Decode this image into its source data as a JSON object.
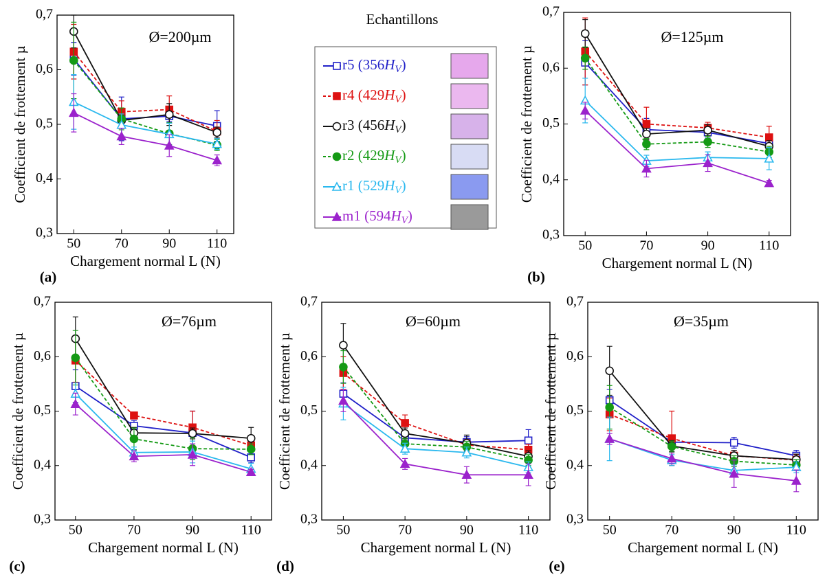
{
  "legend": {
    "title": "Echantillons",
    "items": [
      {
        "prefix": "r5 (356",
        "symbol": "H",
        "subscript": "V",
        "suffix": ")",
        "color": "#2020c8",
        "marker": "square-open",
        "dashed": false
      },
      {
        "prefix": "r4 (429",
        "symbol": "H",
        "subscript": "V",
        "suffix": ")",
        "color": "#dd1111",
        "marker": "square",
        "dashed": true
      },
      {
        "prefix": "r3 (456",
        "symbol": "H",
        "subscript": "V",
        "suffix": ")",
        "color": "#111111",
        "marker": "circle-open",
        "dashed": false
      },
      {
        "prefix": "r2 (429",
        "symbol": "H",
        "subscript": "V",
        "suffix": ")",
        "color": "#159a15",
        "marker": "circle",
        "dashed": true
      },
      {
        "prefix": "r1 (529",
        "symbol": "H",
        "subscript": "V",
        "suffix": ")",
        "color": "#2ab8ee",
        "marker": "triangle-open",
        "dashed": false
      },
      {
        "prefix": "m1 (594",
        "symbol": "H",
        "subscript": "V",
        "suffix": ")",
        "color": "#9b22cc",
        "marker": "triangle",
        "dashed": false
      }
    ]
  },
  "chart_data": [
    {
      "type": "line",
      "title": "Ø=200µm",
      "panel": "(a)",
      "x_label": "Chargement normal L (N)",
      "y_label": "Coefficient de frottement µ",
      "x": [
        50,
        70,
        90,
        110
      ],
      "xlim": [
        43,
        117
      ],
      "xticks": [
        50,
        70,
        90,
        110
      ],
      "ylim": [
        0.3,
        0.7
      ],
      "yticks": [
        {
          "value": 0.3,
          "label": "0,3"
        },
        {
          "value": 0.4,
          "label": "0,4"
        },
        {
          "value": 0.5,
          "label": "0,5"
        },
        {
          "value": 0.6,
          "label": "0,6"
        },
        {
          "value": 0.7,
          "label": "0,7"
        }
      ],
      "series": [
        {
          "values": [
            0.62,
            0.51,
            0.515,
            0.497
          ],
          "errors": [
            0.03,
            0.04,
            0.01,
            0.028
          ]
        },
        {
          "values": [
            0.633,
            0.523,
            0.527,
            0.487
          ],
          "errors": [
            0.05,
            0.02,
            0.025,
            0.02
          ]
        },
        {
          "values": [
            0.67,
            0.507,
            0.518,
            0.485
          ],
          "errors": [
            0.03,
            0.01,
            0.02,
            0.01
          ]
        },
        {
          "values": [
            0.617,
            0.51,
            0.483,
            0.462
          ],
          "errors": [
            0.07,
            0.02,
            0.02,
            0.01
          ]
        },
        {
          "values": [
            0.541,
            0.499,
            0.482,
            0.464
          ],
          "errors": [
            0.05,
            0.02,
            0.02,
            0.01
          ]
        },
        {
          "values": [
            0.521,
            0.478,
            0.461,
            0.434
          ],
          "errors": [
            0.035,
            0.015,
            0.02,
            0.01
          ]
        }
      ]
    },
    {
      "type": "line",
      "title": "Ø=125µm",
      "panel": "(b)",
      "x_label": "Chargement normal L (N)",
      "y_label": "Coefficient de frottement µ",
      "x": [
        50,
        70,
        90,
        110
      ],
      "xlim": [
        43,
        117
      ],
      "xticks": [
        50,
        70,
        90,
        110
      ],
      "ylim": [
        0.3,
        0.7
      ],
      "yticks": [
        {
          "value": 0.3,
          "label": "0,3"
        },
        {
          "value": 0.4,
          "label": "0,4"
        },
        {
          "value": 0.5,
          "label": "0,5"
        },
        {
          "value": 0.6,
          "label": "0,6"
        },
        {
          "value": 0.7,
          "label": "0,7"
        }
      ],
      "series": [
        {
          "values": [
            0.61,
            0.49,
            0.485,
            0.465
          ],
          "errors": [
            0.04,
            0.02,
            0.01,
            0.01
          ]
        },
        {
          "values": [
            0.63,
            0.5,
            0.493,
            0.476
          ],
          "errors": [
            0.06,
            0.03,
            0.01,
            0.02
          ]
        },
        {
          "values": [
            0.662,
            0.482,
            0.489,
            0.46
          ],
          "errors": [
            0.025,
            0.01,
            0.01,
            0.01
          ]
        },
        {
          "values": [
            0.618,
            0.464,
            0.468,
            0.45
          ],
          "errors": [
            0.02,
            0.01,
            0.01,
            0.01
          ]
        },
        {
          "values": [
            0.542,
            0.434,
            0.44,
            0.438
          ],
          "errors": [
            0.04,
            0.01,
            0.01,
            0.02
          ]
        },
        {
          "values": [
            0.524,
            0.42,
            0.43,
            0.394
          ],
          "errors": [
            0.015,
            0.015,
            0.015,
            0.005
          ]
        }
      ]
    },
    {
      "type": "line",
      "title": "Ø=76µm",
      "panel": "(c)",
      "x_label": "Chargement normal L (N)",
      "y_label": "Coefficient de frottement µ",
      "x": [
        50,
        70,
        90,
        110
      ],
      "xlim": [
        43,
        117
      ],
      "xticks": [
        50,
        70,
        90,
        110
      ],
      "ylim": [
        0.3,
        0.7
      ],
      "yticks": [
        {
          "value": 0.3,
          "label": "0,3"
        },
        {
          "value": 0.4,
          "label": "0,4"
        },
        {
          "value": 0.5,
          "label": "0,5"
        },
        {
          "value": 0.6,
          "label": "0,6"
        },
        {
          "value": 0.7,
          "label": "0,7"
        }
      ],
      "series": [
        {
          "values": [
            0.546,
            0.473,
            0.46,
            0.415
          ],
          "errors": [
            0.03,
            0.01,
            0.04,
            0.01
          ]
        },
        {
          "values": [
            0.593,
            0.492,
            0.47,
            0.437
          ],
          "errors": [
            0.04,
            0.005,
            0.03,
            0.01
          ]
        },
        {
          "values": [
            0.633,
            0.46,
            0.459,
            0.45
          ],
          "errors": [
            0.04,
            0.01,
            0.01,
            0.02
          ]
        },
        {
          "values": [
            0.598,
            0.449,
            0.431,
            0.43
          ],
          "errors": [
            0.05,
            0.02,
            0.02,
            0.01
          ]
        },
        {
          "values": [
            0.532,
            0.424,
            0.425,
            0.394
          ],
          "errors": [
            0.02,
            0.01,
            0.02,
            0.01
          ]
        },
        {
          "values": [
            0.513,
            0.417,
            0.42,
            0.388
          ],
          "errors": [
            0.02,
            0.01,
            0.02,
            0.005
          ]
        }
      ]
    },
    {
      "type": "line",
      "title": "Ø=60µm",
      "panel": "(d)",
      "x_label": "Chargement normal L (N)",
      "y_label": "Coefficient de frottement µ",
      "x": [
        50,
        70,
        90,
        110
      ],
      "xlim": [
        43,
        117
      ],
      "xticks": [
        50,
        70,
        90,
        110
      ],
      "ylim": [
        0.3,
        0.7
      ],
      "yticks": [
        {
          "value": 0.3,
          "label": "0,3"
        },
        {
          "value": 0.4,
          "label": "0,4"
        },
        {
          "value": 0.5,
          "label": "0,5"
        },
        {
          "value": 0.6,
          "label": "0,6"
        },
        {
          "value": 0.7,
          "label": "0,7"
        }
      ],
      "series": [
        {
          "values": [
            0.532,
            0.451,
            0.443,
            0.446
          ],
          "errors": [
            0.02,
            0.01,
            0.01,
            0.02
          ]
        },
        {
          "values": [
            0.57,
            0.478,
            0.438,
            0.429
          ],
          "errors": [
            0.03,
            0.015,
            0.01,
            0.01
          ]
        },
        {
          "values": [
            0.621,
            0.459,
            0.441,
            0.417
          ],
          "errors": [
            0.04,
            0.01,
            0.015,
            0.01
          ]
        },
        {
          "values": [
            0.581,
            0.44,
            0.434,
            0.41
          ],
          "errors": [
            0.03,
            0.01,
            0.01,
            0.01
          ]
        },
        {
          "values": [
            0.514,
            0.431,
            0.424,
            0.397
          ],
          "errors": [
            0.03,
            0.01,
            0.01,
            0.01
          ]
        },
        {
          "values": [
            0.519,
            0.403,
            0.383,
            0.383
          ],
          "errors": [
            0.02,
            0.01,
            0.015,
            0.02
          ]
        }
      ]
    },
    {
      "type": "line",
      "title": "Ø=35µm",
      "panel": "(e)",
      "x_label": "Chargement normal L (N)",
      "y_label": "Coefficient de frottement µ",
      "x": [
        50,
        70,
        90,
        110
      ],
      "xlim": [
        43,
        117
      ],
      "xticks": [
        50,
        70,
        90,
        110
      ],
      "ylim": [
        0.3,
        0.7
      ],
      "yticks": [
        {
          "value": 0.3,
          "label": "0,3"
        },
        {
          "value": 0.4,
          "label": "0,4"
        },
        {
          "value": 0.5,
          "label": "0,5"
        },
        {
          "value": 0.6,
          "label": "0,6"
        },
        {
          "value": 0.7,
          "label": "0,7"
        }
      ],
      "series": [
        {
          "values": [
            0.52,
            0.443,
            0.442,
            0.418
          ],
          "errors": [
            0.02,
            0.01,
            0.01,
            0.01
          ]
        },
        {
          "values": [
            0.494,
            0.45,
            0.418,
            0.41
          ],
          "errors": [
            0.03,
            0.05,
            0.01,
            0.01
          ]
        },
        {
          "values": [
            0.574,
            0.436,
            0.418,
            0.411
          ],
          "errors": [
            0.045,
            0.01,
            0.01,
            0.01
          ]
        },
        {
          "values": [
            0.507,
            0.435,
            0.408,
            0.401
          ],
          "errors": [
            0.04,
            0.01,
            0.01,
            0.01
          ]
        },
        {
          "values": [
            0.449,
            0.41,
            0.391,
            0.397
          ],
          "errors": [
            0.04,
            0.01,
            0.01,
            0.01
          ]
        },
        {
          "values": [
            0.449,
            0.413,
            0.385,
            0.372
          ],
          "errors": [
            0.01,
            0.01,
            0.025,
            0.02
          ]
        }
      ]
    }
  ]
}
